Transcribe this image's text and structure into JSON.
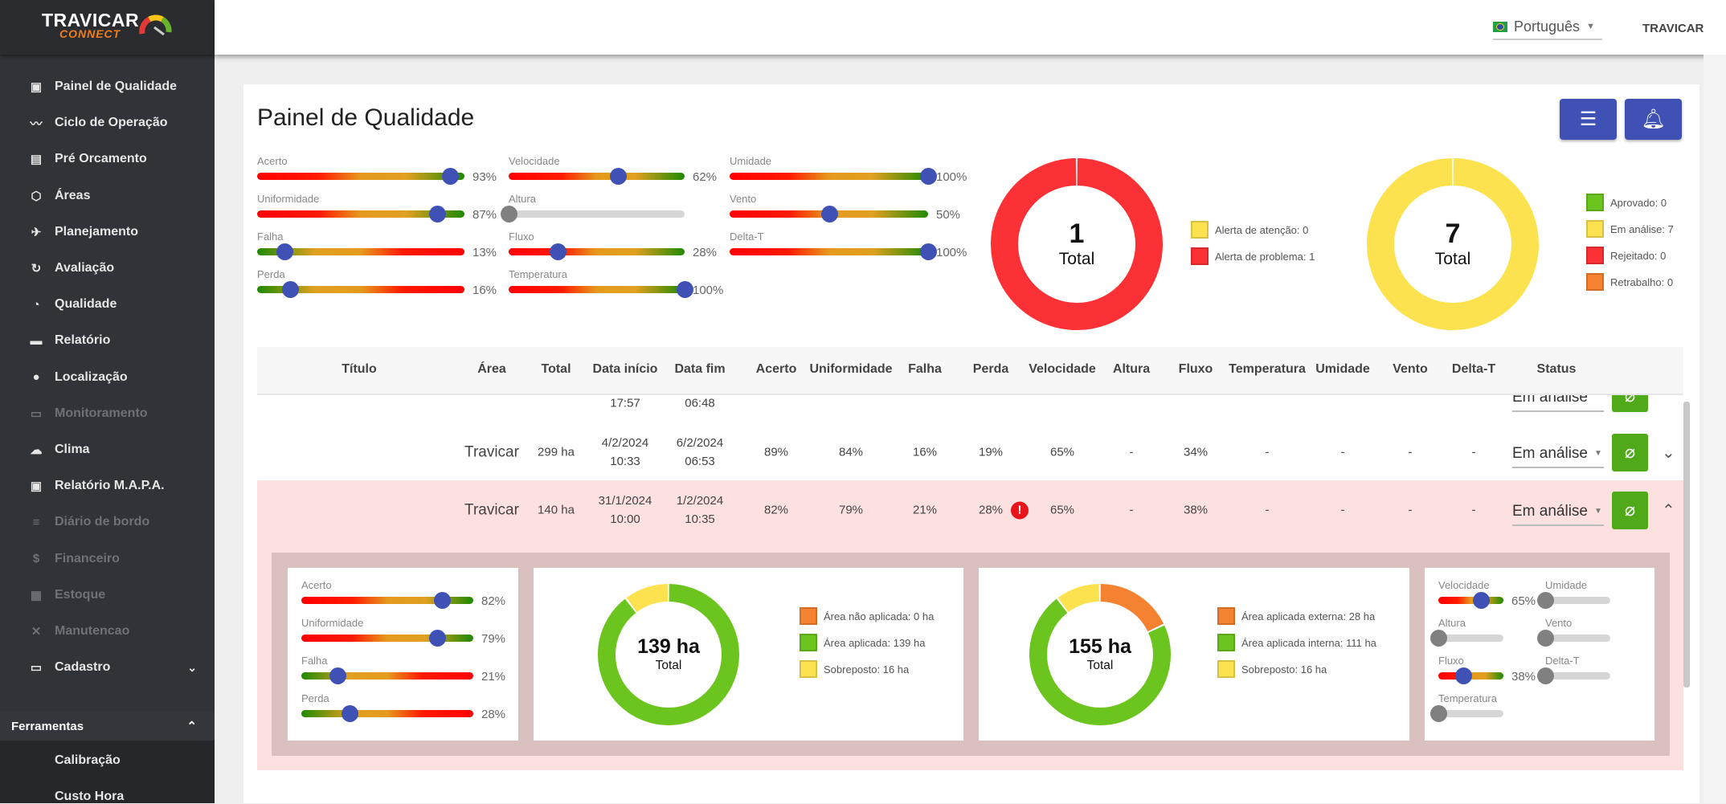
{
  "logo": {
    "title": "TRAVICAR",
    "subtitle": "CONNECT"
  },
  "sidebar": {
    "items": [
      {
        "label": "Painel de Qualidade",
        "icon": "dashboard-icon",
        "glyph": "▣",
        "enabled": true
      },
      {
        "label": "Ciclo de Operação",
        "icon": "trending-icon",
        "glyph": "〰",
        "enabled": true
      },
      {
        "label": "Pré Orcamento",
        "icon": "document-icon",
        "glyph": "▤",
        "enabled": true
      },
      {
        "label": "Áreas",
        "icon": "area-icon",
        "glyph": "⬡",
        "enabled": true
      },
      {
        "label": "Planejamento",
        "icon": "flight-icon",
        "glyph": "✈",
        "enabled": true
      },
      {
        "label": "Avaliação",
        "icon": "gauge-icon",
        "glyph": "↻",
        "enabled": true
      },
      {
        "label": "Qualidade",
        "icon": "speedometer-icon",
        "glyph": "◔",
        "enabled": true
      },
      {
        "label": "Relatório",
        "icon": "print-icon",
        "glyph": "▬",
        "enabled": true
      },
      {
        "label": "Localização",
        "icon": "location-icon",
        "glyph": "●",
        "enabled": true
      },
      {
        "label": "Monitoramento",
        "icon": "cast-icon",
        "glyph": "▭",
        "enabled": false
      },
      {
        "label": "Clima",
        "icon": "cloud-icon",
        "glyph": "☁",
        "enabled": true
      },
      {
        "label": "Relatório M.A.P.A.",
        "icon": "report-icon",
        "glyph": "▣",
        "enabled": true
      },
      {
        "label": "Diário de bordo",
        "icon": "list-icon",
        "glyph": "≡",
        "enabled": false
      },
      {
        "label": "Financeiro",
        "icon": "dollar-icon",
        "glyph": "$",
        "enabled": false
      },
      {
        "label": "Estoque",
        "icon": "inventory-icon",
        "glyph": "▦",
        "enabled": false
      },
      {
        "label": "Manutencao",
        "icon": "tools-icon",
        "glyph": "✕",
        "enabled": false
      },
      {
        "label": "Cadastro",
        "icon": "card-icon",
        "glyph": "▭",
        "enabled": true,
        "chevron": "⌄"
      }
    ],
    "section": {
      "label": "Ferramentas",
      "chevron": "⌃"
    },
    "sub_items": [
      "Calibração",
      "Custo Hora"
    ]
  },
  "topbar": {
    "language": "Português",
    "user": "TRAVICAR"
  },
  "page": {
    "title": "Painel de Qualidade"
  },
  "summary": {
    "sliders": {
      "acerto": {
        "label": "Acerto",
        "value": 93,
        "invert": false
      },
      "uniformidade": {
        "label": "Uniformidade",
        "value": 87,
        "invert": false
      },
      "falha": {
        "label": "Falha",
        "value": 13,
        "invert": true
      },
      "perda": {
        "label": "Perda",
        "value": 16,
        "invert": true
      },
      "velocidade": {
        "label": "Velocidade",
        "value": 62,
        "invert": false
      },
      "altura": {
        "label": "Altura",
        "value": null,
        "invert": false
      },
      "fluxo": {
        "label": "Fluxo",
        "value": 28,
        "invert": false
      },
      "temperatura": {
        "label": "Temperatura",
        "value": 100,
        "invert": false
      },
      "umidade": {
        "label": "Umidade",
        "value": 100,
        "invert": false
      },
      "vento": {
        "label": "Vento",
        "value": 50,
        "invert": false
      },
      "deltat": {
        "label": "Delta-T",
        "value": 100,
        "invert": false
      }
    },
    "alerts": {
      "total": "1",
      "total_label": "Total",
      "segments": [
        {
          "label": "Alerta de atenção: 0",
          "value": 0,
          "color": "#fde24f"
        },
        {
          "label": "Alerta de problema: 1",
          "value": 1,
          "color": "#fb3135"
        }
      ]
    },
    "status": {
      "total": "7",
      "total_label": "Total",
      "segments": [
        {
          "label": "Aprovado: 0",
          "value": 0,
          "color": "#6cc51e"
        },
        {
          "label": "Em análise: 7",
          "value": 7,
          "color": "#fde24f"
        },
        {
          "label": "Rejeitado: 0",
          "value": 0,
          "color": "#fb3135"
        },
        {
          "label": "Retrabalho: 0",
          "value": 0,
          "color": "#f58231"
        }
      ]
    }
  },
  "table": {
    "headers": [
      "Título",
      "Área",
      "Total",
      "Data início",
      "Data fim",
      "Acerto",
      "Uniformidade",
      "Falha",
      "Perda",
      "Velocidade",
      "Altura",
      "Fluxo",
      "Temperatura",
      "Umidade",
      "Vento",
      "Delta-T",
      "Status"
    ],
    "partial_row": {
      "inicio": "17:57",
      "fim": "06:48",
      "status": "Em análise"
    },
    "rows": [
      {
        "cells": [
          "",
          "Travicar",
          "299 ha",
          "4/2/2024\n10:33",
          "6/2/2024\n06:53",
          "89%",
          "84%",
          "16%",
          "19%",
          "65%",
          "-",
          "34%",
          "-",
          "-",
          "-",
          "-"
        ],
        "status": "Em análise",
        "alert": false,
        "expanded": false,
        "chevron": "⌄"
      },
      {
        "cells": [
          "",
          "Travicar",
          "140 ha",
          "31/1/2024\n10:00",
          "1/2/2024\n10:35",
          "82%",
          "79%",
          "21%",
          "28%",
          "65%",
          "-",
          "38%",
          "-",
          "-",
          "-",
          "-"
        ],
        "status": "Em análise",
        "alert": true,
        "alert_glyph": "!",
        "expanded": true,
        "chevron": "⌃"
      }
    ]
  },
  "detail": {
    "sliders": {
      "acerto": {
        "label": "Acerto",
        "value": 82,
        "invert": false
      },
      "uniformidade": {
        "label": "Uniformidade",
        "value": 79,
        "invert": false
      },
      "falha": {
        "label": "Falha",
        "value": 21,
        "invert": true
      },
      "perda": {
        "label": "Perda",
        "value": 28,
        "invert": true
      },
      "velocidade": {
        "label": "Velocidade",
        "value": 65,
        "invert": false
      },
      "umidade": {
        "label": "Umidade",
        "value": null,
        "invert": false
      },
      "altura": {
        "label": "Altura",
        "value": null,
        "invert": false
      },
      "vento": {
        "label": "Vento",
        "value": null,
        "invert": false
      },
      "fluxo": {
        "label": "Fluxo",
        "value": 38,
        "invert": false
      },
      "deltat": {
        "label": "Delta-T",
        "value": null,
        "invert": false
      },
      "temperatura": {
        "label": "Temperatura",
        "value": null,
        "invert": false
      }
    },
    "area": {
      "total": "139 ha",
      "total_label": "Total",
      "segments": [
        {
          "label": "Área não aplicada: 0 ha",
          "value": 0,
          "color": "#f58231"
        },
        {
          "label": "Área aplicada: 139 ha",
          "value": 139,
          "color": "#6cc51e"
        },
        {
          "label": "Sobreposto: 16 ha",
          "value": 16,
          "color": "#fde24f"
        }
      ]
    },
    "area2": {
      "total": "155 ha",
      "total_label": "Total",
      "segments": [
        {
          "label": "Área aplicada externa: 28 ha",
          "value": 28,
          "color": "#f58231"
        },
        {
          "label": "Área aplicada interna: 111 ha",
          "value": 111,
          "color": "#6cc51e"
        },
        {
          "label": "Sobreposto: 16 ha",
          "value": 16,
          "color": "#fde24f"
        }
      ]
    }
  },
  "colors": {
    "primary": "#3f51b5",
    "success": "#4fa918",
    "row_alert": "#fde0e0"
  }
}
